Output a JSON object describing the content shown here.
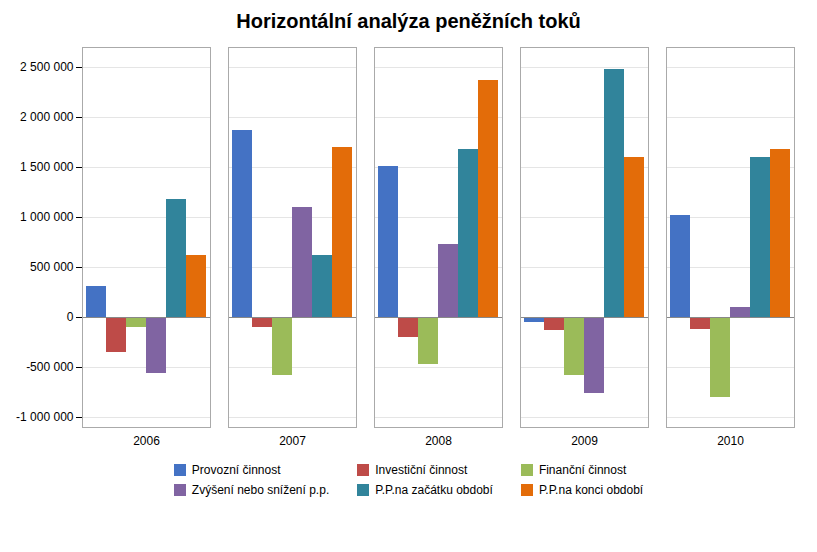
{
  "chart_data": {
    "type": "bar",
    "title": "Horizontální analýza peněžních toků",
    "categories": [
      "2006",
      "2007",
      "2008",
      "2009",
      "2010"
    ],
    "series": [
      {
        "name": "Provozní činnost",
        "color": "#4472C4",
        "values": [
          310000,
          1870000,
          1510000,
          -50000,
          1020000
        ]
      },
      {
        "name": "Investiční činnost",
        "color": "#BE4B48",
        "values": [
          -350000,
          -100000,
          -200000,
          -130000,
          -120000
        ]
      },
      {
        "name": "Finanční činnost",
        "color": "#9BBB59",
        "values": [
          -100000,
          -580000,
          -470000,
          -580000,
          -800000
        ]
      },
      {
        "name": "Zvýšení nebo snížení p.p.",
        "color": "#8064A2",
        "values": [
          -560000,
          1100000,
          730000,
          -760000,
          100000
        ]
      },
      {
        "name": "P.P.na začátku období",
        "color": "#31849B",
        "values": [
          1180000,
          620000,
          1680000,
          2480000,
          1600000
        ]
      },
      {
        "name": "P.P.na konci období",
        "color": "#E36C09",
        "values": [
          620000,
          1700000,
          2370000,
          1600000,
          1680000
        ]
      }
    ],
    "ylim": [
      -1100000,
      2700000
    ],
    "yticks": [
      {
        "value": -1000000,
        "label": "-1 000 000"
      },
      {
        "value": -500000,
        "label": "-500 000"
      },
      0,
      {
        "value": 500000,
        "label": "500 000"
      },
      {
        "value": 1000000,
        "label": "1 000 000"
      },
      {
        "value": 1500000,
        "label": "1 500 000"
      },
      {
        "value": 2000000,
        "label": "2 000 000"
      },
      {
        "value": 2500000,
        "label": "2 500 000"
      }
    ],
    "grid": true,
    "legend": "bottom"
  }
}
